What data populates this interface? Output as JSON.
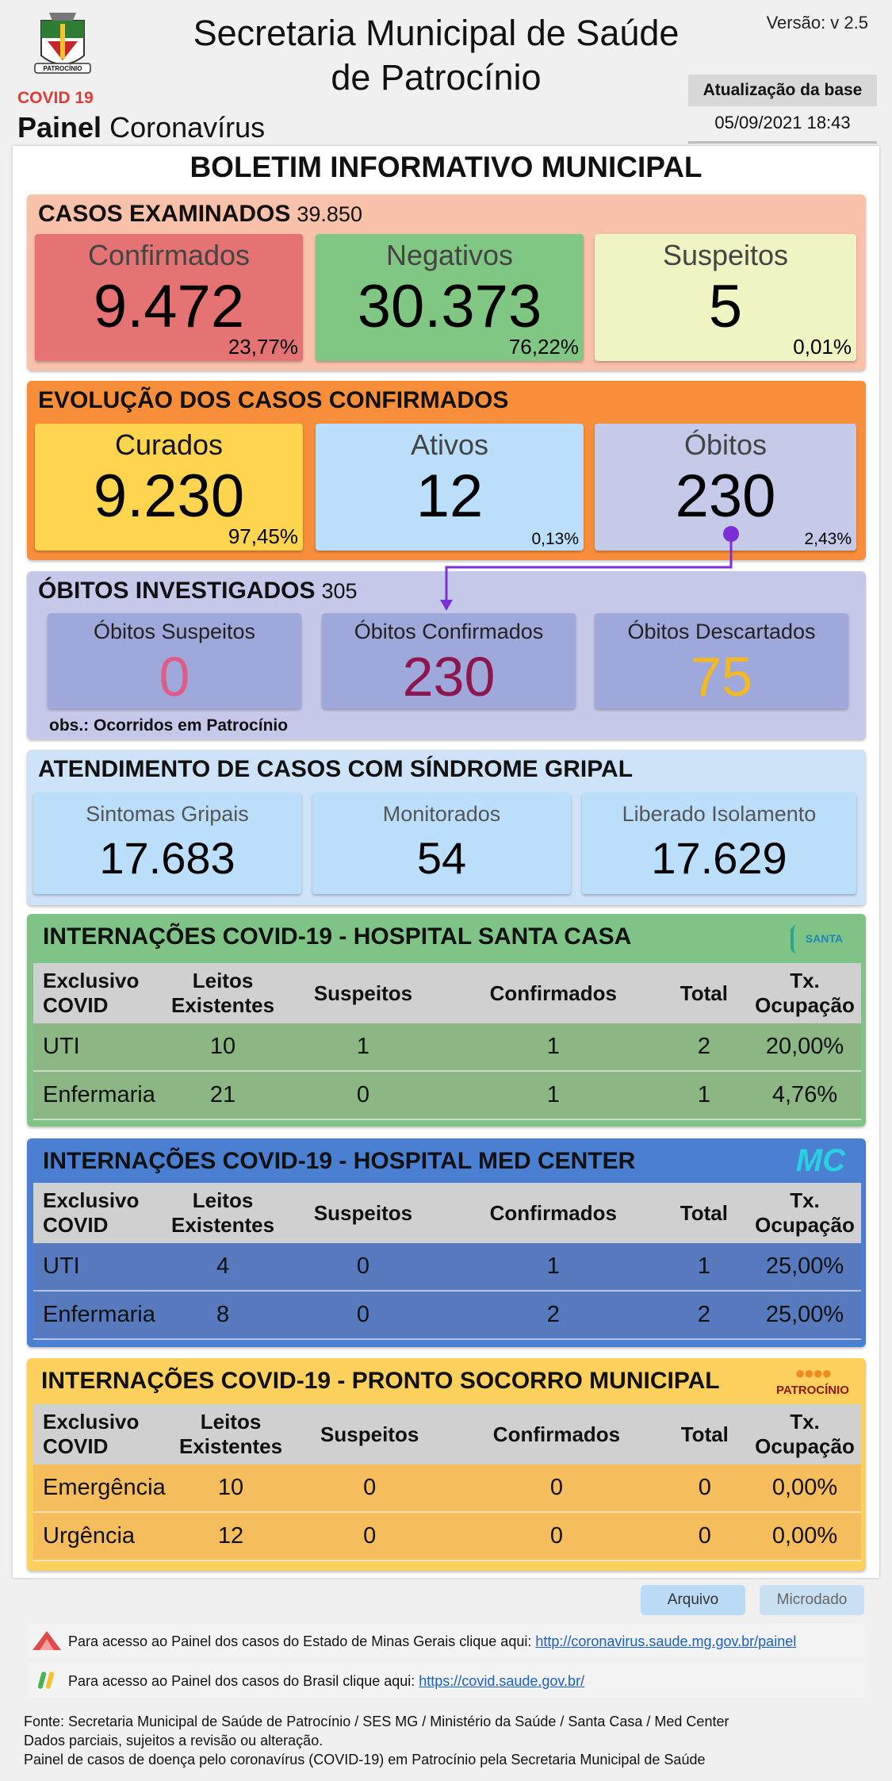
{
  "header": {
    "crest_text": "PATROCÍNIO",
    "covid_label": "COVID 19",
    "panel_bold": "Painel",
    "panel_rest": "Coronavírus",
    "title_line1": "Secretaria Municipal de Saúde",
    "title_line2": "de Patrocínio",
    "version": "Versão: v 2.5",
    "update_label": "Atualização da base",
    "update_date": "05/09/2021 18:43"
  },
  "bulletin_title": "BOLETIM INFORMATIVO MUNICIPAL",
  "casos": {
    "title": "CASOS EXAMINADOS",
    "total": "39.850",
    "boxes": [
      {
        "label": "Confirmados",
        "value": "9.472",
        "pct": "23,77%"
      },
      {
        "label": "Negativos",
        "value": "30.373",
        "pct": "76,22%"
      },
      {
        "label": "Suspeitos",
        "value": "5",
        "pct": "0,01%"
      }
    ]
  },
  "evolucao": {
    "title": "EVOLUÇÃO DOS CASOS CONFIRMADOS",
    "boxes": [
      {
        "label": "Curados",
        "value": "9.230",
        "pct": "97,45%"
      },
      {
        "label": "Ativos",
        "value": "12",
        "pct": "0,13%"
      },
      {
        "label": "Óbitos",
        "value": "230",
        "pct": "2,43%"
      }
    ]
  },
  "obitos": {
    "title": "ÓBITOS INVESTIGADOS",
    "total": "305",
    "boxes": [
      {
        "label": "Óbitos Suspeitos",
        "value": "0",
        "color": "#e05a8a"
      },
      {
        "label": "Óbitos Confirmados",
        "value": "230",
        "color": "#8b1650"
      },
      {
        "label": "Óbitos Descartados",
        "value": "75",
        "color": "#f4b823"
      }
    ],
    "obs": "obs.: Ocorridos em Patrocínio"
  },
  "sindrome": {
    "title": "ATENDIMENTO DE CASOS COM SÍNDROME GRIPAL",
    "boxes": [
      {
        "label": "Sintomas Gripais",
        "value": "17.683"
      },
      {
        "label": "Monitorados",
        "value": "54"
      },
      {
        "label": "Liberado Isolamento",
        "value": "17.629"
      }
    ]
  },
  "table_headers": [
    "Exclusivo COVID",
    "Leitos Existentes",
    "Suspeitos",
    "Confirmados",
    "Total",
    "Tx. Ocupação"
  ],
  "santa_casa": {
    "title": "INTERNAÇÕES COVID-19 - HOSPITAL SANTA CASA",
    "logo": "SANTA CASA",
    "rows": [
      [
        "UTI",
        "10",
        "1",
        "1",
        "2",
        "20,00%"
      ],
      [
        "Enfermaria",
        "21",
        "0",
        "1",
        "1",
        "4,76%"
      ]
    ]
  },
  "med_center": {
    "title": "INTERNAÇÕES COVID-19 - HOSPITAL MED CENTER",
    "logo": "MC",
    "rows": [
      [
        "UTI",
        "4",
        "0",
        "1",
        "1",
        "25,00%"
      ],
      [
        "Enfermaria",
        "8",
        "0",
        "2",
        "2",
        "25,00%"
      ]
    ]
  },
  "pronto_socorro": {
    "title": "INTERNAÇÕES COVID-19 - PRONTO SOCORRO MUNICIPAL",
    "logo": "PATROCÍNIO",
    "rows": [
      [
        "Emergência",
        "10",
        "0",
        "0",
        "0",
        "0,00%"
      ],
      [
        "Urgência",
        "12",
        "0",
        "0",
        "0",
        "0,00%"
      ]
    ]
  },
  "buttons": {
    "arquivo": "Arquivo",
    "microdado": "Microdado"
  },
  "links": [
    {
      "text": "Para acesso ao Painel dos casos do Estado de Minas Gerais clique aqui:",
      "url": "http://coronavirus.saude.mg.gov.br/painel"
    },
    {
      "text": "Para acesso ao Painel dos casos do Brasil clique aqui:",
      "url": "https://covid.saude.gov.br/"
    }
  ],
  "footer": {
    "line1": "Fonte: Secretaria Municipal de Saúde de Patrocínio / SES MG / Ministério da Saúde / Santa Casa / Med Center",
    "line2": "Dados parciais, sujeitos a revisão ou alteração.",
    "line3": "Painel de casos de doença pelo coronavírus (COVID-19) em Patrocínio pela Secretaria Municipal de Saúde"
  }
}
